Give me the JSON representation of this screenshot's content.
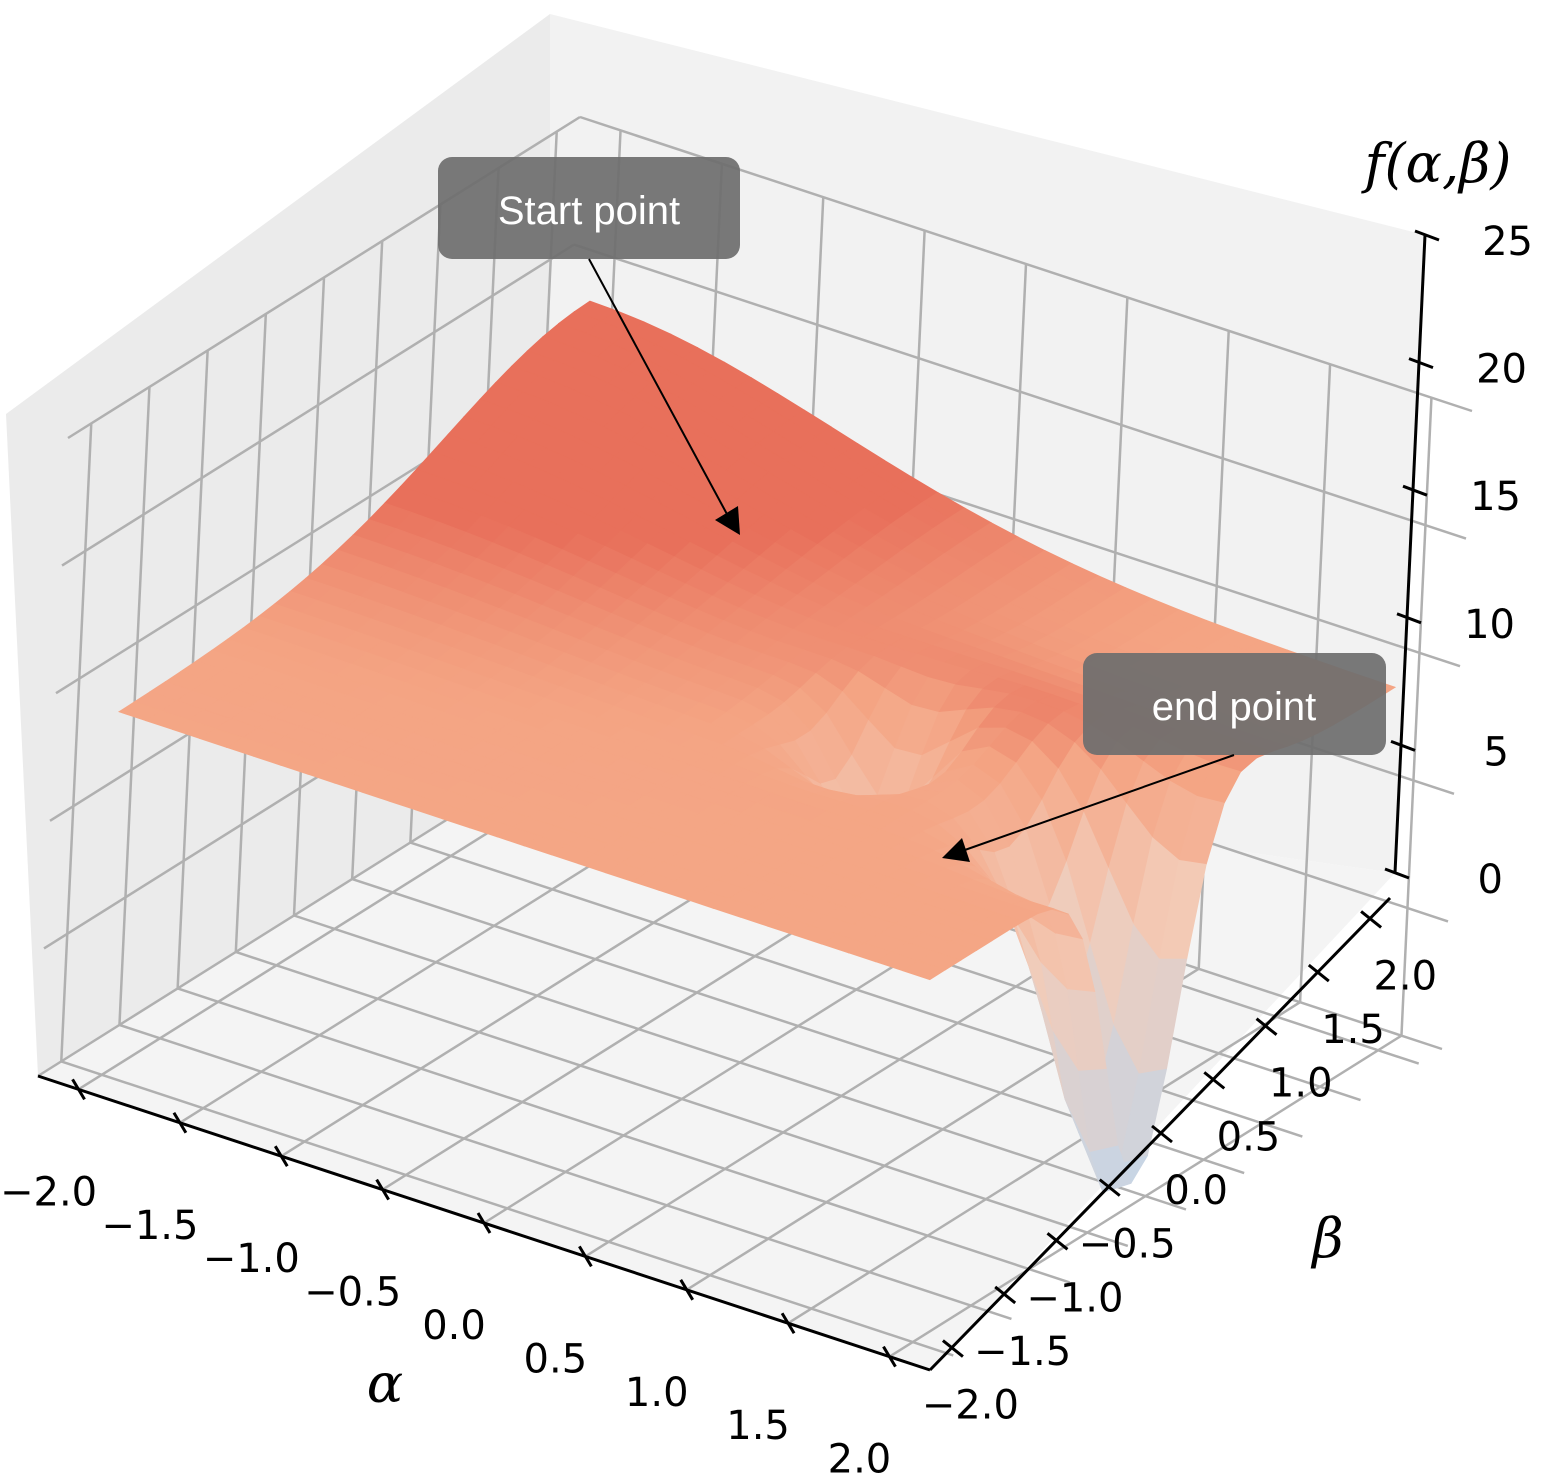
{
  "chart_data": {
    "type": "surface",
    "x_axis": {
      "label": "α",
      "ticks": [
        "−2.0",
        "−1.5",
        "−1.0",
        "−0.5",
        "0.0",
        "0.5",
        "1.0",
        "1.5",
        "2.0"
      ],
      "range": [
        -2,
        2
      ]
    },
    "y_axis": {
      "label": "β",
      "ticks": [
        "−2.0",
        "−1.5",
        "−1.0",
        "−0.5",
        "0.0",
        "0.5",
        "1.0",
        "1.5",
        "2.0"
      ],
      "range": [
        -2,
        2
      ]
    },
    "z_axis": {
      "label": "f(α,β)",
      "ticks": [
        "0",
        "5",
        "10",
        "15",
        "20",
        "25"
      ],
      "range": [
        0,
        25
      ]
    },
    "surface": {
      "plateau_value": 14.2,
      "high_corner": {
        "alpha": -2,
        "beta": 2,
        "value": 22
      },
      "minimum": {
        "alpha": 1.9,
        "beta": -0.1,
        "value": 0.0
      },
      "ridge_value": 15.5,
      "colormap": [
        "#c4d6e8",
        "#f3cbb7",
        "#f4a483",
        "#e8705b"
      ]
    },
    "annotations": [
      {
        "text": "Start point"
      },
      {
        "text": "end point"
      }
    ],
    "grid": true
  }
}
